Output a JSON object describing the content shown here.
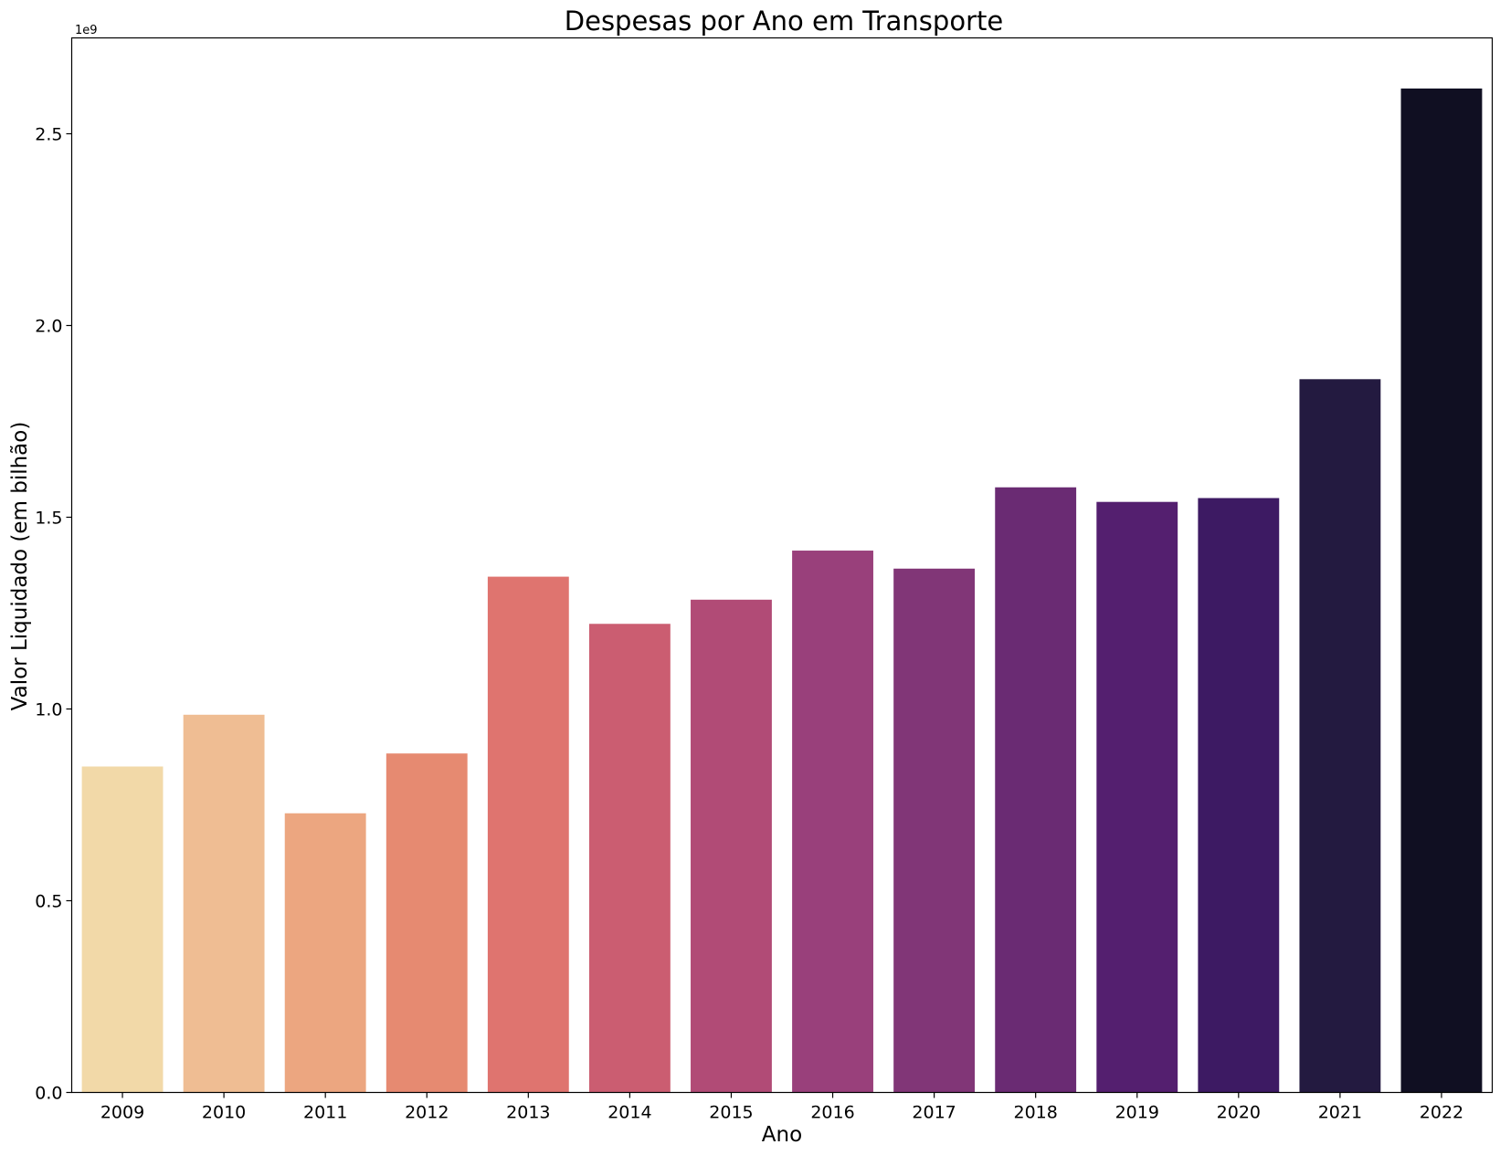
{
  "chart_data": {
    "type": "bar",
    "title": "Despesas por Ano em Transporte",
    "xlabel": "Ano",
    "ylabel": "Valor Liquidado (em bilhão)",
    "y_offset_label": "1e9",
    "y_scale": 1000000000,
    "ylim": [
      0,
      2.75
    ],
    "yticks": [
      "0.0",
      "0.5",
      "1.0",
      "1.5",
      "2.0",
      "2.5"
    ],
    "grid": false,
    "categories": [
      "2009",
      "2010",
      "2011",
      "2012",
      "2013",
      "2014",
      "2015",
      "2016",
      "2017",
      "2018",
      "2019",
      "2020",
      "2021",
      "2022"
    ],
    "values": [
      0.85,
      0.985,
      0.728,
      0.884,
      1.345,
      1.222,
      1.285,
      1.413,
      1.366,
      1.578,
      1.54,
      1.55,
      1.86,
      2.618
    ],
    "colors": [
      "#f2d9a8",
      "#efbd93",
      "#eca680",
      "#e68a71",
      "#df746f",
      "#cb5d71",
      "#b14b76",
      "#99407b",
      "#813677",
      "#6a2b73",
      "#541f6f",
      "#3d1a63",
      "#231a40",
      "#100f22"
    ]
  }
}
